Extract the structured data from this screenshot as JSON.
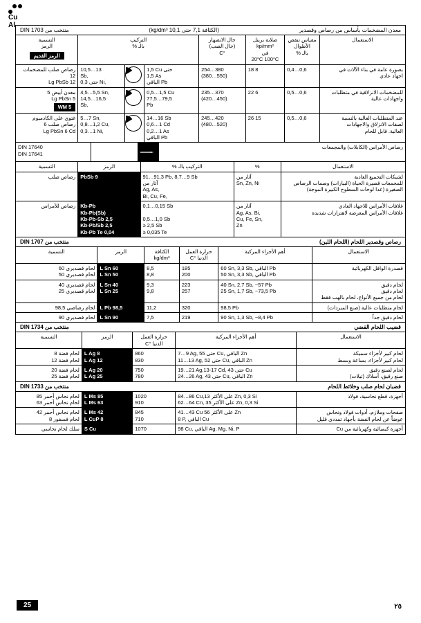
{
  "corner": {
    "l1": "Cu",
    "l2": "Al"
  },
  "t1": {
    "din": "منتخب من DIN 1703",
    "density": "(الكثافة 7,1 حتى 10,1 kg/dm³)",
    "title": "معدن المضخمات بأساس من رصاص وقصدير",
    "head": {
      "use": "الاستعمال",
      "scale": "مقياس تنقص\nالأطوال\nبالـ %",
      "brinell": "صلابة برينل\nkp/mm²\nفي\n20°C 100°C",
      "pour": "خال الانصهار\n(خال الصب)\n°C",
      "comp": "التركيب\nبالـ %",
      "name": "التسمية\nالرمز",
      "oldsym": "الرمز القديم"
    },
    "rows": [
      {
        "use": "بصورة عامة في بناء الآلات في\nاجهاد عادي",
        "scale": "0,4…0,6",
        "brinell": "18   8",
        "pour": "254…380\n(380…550)",
        "comp": "1,5 Cu حتى\n1,5 As\nالباقي Pb",
        "pie": 15,
        "compR": "10,5…13\nSb,\nحتى 0,3 Ni,",
        "name": "رصاص صلب للمضخمات 12\nLg PbSb 12"
      },
      {
        "use": "للمضخمات الانزلاقية في متطلبات\nواجهادات عالية",
        "scale": "0,5…0,6",
        "brinell": "22   6",
        "pour": "235…370\n(420…450)",
        "comp": "0,5…1,5 Cu\n77,5…79,5\nPb",
        "pie": 20,
        "compR": "4,5…5,5 Sn,\n14,5…16,5\nSb,",
        "name": "معدن أبيض 5\nLg PbSn 5",
        "old": "WM 5"
      },
      {
        "use": "عند المتطلبات العالية بالنسبة\nلصفات الانزلاق والاجهادات\nالعالية. قابل للحام",
        "scale": "0,5…0,6",
        "brinell": "26   15",
        "pour": "245…420\n(480…520)",
        "comp": "14…16 Sb\n0,6…1 Cd\n0,2…1 As\nالباقي Pb",
        "pie": 18,
        "compR": "5…7 Sn,\n0,8…1,2 Cu,\n0,3…1 Ni,",
        "name": "غتوي على الكادميوم\nرصاص صلب 6\nLg PbSn 6 Cd"
      }
    ]
  },
  "t2": {
    "din": "DIN 17640\nDIN 17641",
    "title": "رصاص الأمراس (الكابلات) والمجمعات",
    "head": {
      "use": "الاستعمال",
      "pct": "%",
      "comp": "التركيب بالـ %",
      "sym": "الرمز",
      "name": "التسمية"
    },
    "rows": [
      {
        "use": "لشبكات التجميع العادية\nللمجمعات قصيرة الحياة (البيارات) وصمات الرصاص\nالصغيرة (عدا لوحات السطوح الكبيرة الموجة)",
        "pct": "آثار من\nSn, Zn, Ni",
        "comp": "91…91,3 Pb, 8,7…9 Sb\nآثار من\nAg, As,\nBi, Cu, Fe,",
        "sym": "PbSb 9",
        "name": "رصاص صلب"
      },
      {
        "use": "غلافات الأمراس للاجهاد العادي\nغلافات الأمراس المعرضة لاهتزازات شديدة",
        "pct": "آثار من\nAg, As, Bi,\nCu, Fe, Sn,\nZn",
        "comp": "0,1…0,15 Sb\n\n0,5…1,0 Sb\n≥ 2,5 Sb\n≥ 0,035 Te",
        "sym": "Kb-Pb\nKb-Pb(Sb)\nKb-Pb-Sb 2,5\nKb-Pb/Sb 2,5\nKb-Pb Te 0,04",
        "name": "رصاص للأمراس"
      }
    ]
  },
  "t3": {
    "din": "منتخب من DIN 1707",
    "title": "رصاص وقصدير اللحام (اللحام اللين)",
    "head": {
      "use": "الاستعمال",
      "parts": "أهم الأجزاء المركبة",
      "temp": "حرارة العمل\nالدنيا °C",
      "dens": "الكثافة\nkg/dm³",
      "sym": "الرمز",
      "name": "التسمية"
    },
    "rows": [
      {
        "use": "قصدرة الواقل الكهربائية",
        "parts": "60 Sn, 3,3 Sb, الباقي Pb\n50 Sn, 3,3 Sb, الباقي Pb",
        "temp": "185\n200",
        "dens": "8,5\n8,8",
        "sym": "L Sn 60\nL Sn 50",
        "name": "لحام قصديري 60\nلحام قصديري 50"
      },
      {
        "use": "لحام دقيق\nلحام دقيق\nلحام من جميع الأنواع، لحام بالهب فقط",
        "parts": "40 Sn, 2,7 Sb, ~57 Pb\n25 Sn, 1,7 Sb, ~73,5 Pb",
        "temp": "223\n257",
        "dens": "9,3\n9,8",
        "sym": "L Sn 40\nL Sn 25",
        "name": "لحام قصديري 40\nلحام قصديري 25"
      },
      {
        "use": "لحام متطلبات عالية (صنع المبردات)",
        "parts": "98,5 Pb",
        "temp": "320",
        "dens": "11,2",
        "sym": "L Pb 98,5",
        "name": "لحام رصاصي 98,5"
      },
      {
        "use": "لحام دقيق جداً",
        "parts": "90 Sn, 1,3 Sb, ~8,4 Pb",
        "temp": "219",
        "dens": "7,5",
        "sym": "L Sn 90",
        "name": "لحام قصديري 90"
      }
    ]
  },
  "t4": {
    "din": "منتخب من DIN 1734",
    "title": "قضيب اللحام الفضي",
    "head": {
      "use": "الاستعمال",
      "parts": "أهم الأجزاء المركبة",
      "temp": "حرارة العمل\nالدنيا °C",
      "sym": "الرمز",
      "name": "التسمية"
    },
    "rows": [
      {
        "use": "لحام كبير لأجزاء سميكة\nلحام كبير لأجزاء، بساعة وبسط",
        "parts": "7…9 Ag, حتى 55 Cu, الباقي Zn\n11…13 Ag, حتى 52 Cu, الباقي Zn",
        "temp": "860\n830",
        "sym": "L Ag 8\nL Ag 12",
        "name": "لحام فضة 8\nلحام فضة 12"
      },
      {
        "use": "لحام لصنع دقيق\nصنع رقيق، أسلاك (تيلات)",
        "parts": "19…21 Ag,13-17 Cd, حتى 43 Cu\n24…26 Ag, حتى 43 Cu, الباقي Zn",
        "temp": "750\n780",
        "sym": "L Ag 20\nL Ag 25",
        "name": "لحام فضة 20\nلحام فضة 25"
      }
    ]
  },
  "t5": {
    "din": "منتخب من DIN 1733",
    "title": "قضبان لحام صلب وخلائط اللحام",
    "rows": [
      {
        "use": "أجهزة، قطع نحاسية، فولاذ",
        "parts": "84…86 Cu,على الأكثر 13 Zn, 0,3 Si\n62…64 Cn, على الأكثر 35 Zn, 0,3 Si",
        "temp": "1020\n910",
        "sym": "L Ms 85\nL Ms 63",
        "name": "لحام نحاس أحمر 85\nلحام نحاس أحمر 63"
      },
      {
        "use": "صفحات وملازم، أدوات فولاذ ونحاس\nعوضاً عن لحام الفضة بأجهاد تمددي قليل",
        "parts": "41…43 Cu على الأكثر 56 Zn\n8 P,   الباقي Cu",
        "temp": "845\n710",
        "sym": "L Ms 42\nL CuP 8",
        "name": "لحام نحاس أحمر 42\nلحام فسفور 8"
      },
      {
        "use": "أجهزة كيميائية وكهربائية من Cu",
        "parts": "98 Cu,  الباقي Ag, Mg, Ni, P",
        "temp": "1070",
        "sym": "S Cu",
        "name": "سلك لحام نحاسي"
      }
    ]
  },
  "page": {
    "ar": "٢٥",
    "en": "25"
  }
}
